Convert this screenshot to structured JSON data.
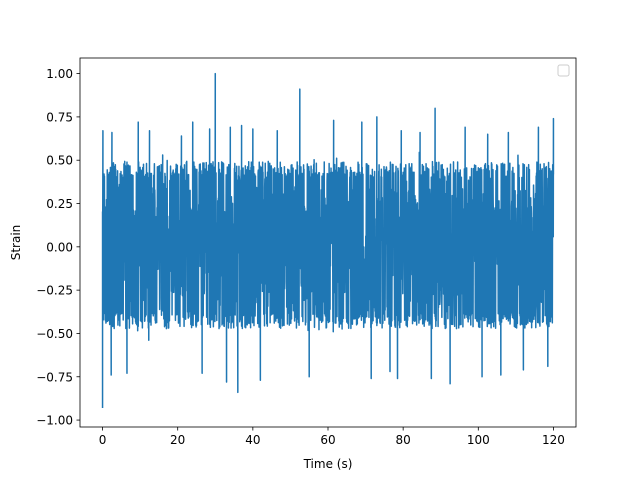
{
  "chart_data": {
    "type": "line",
    "title": "",
    "xlabel": "Time (s)",
    "ylabel": "Strain",
    "xlim": [
      -6,
      126
    ],
    "ylim": [
      -1.04,
      1.09
    ],
    "xticks": [
      0,
      20,
      40,
      60,
      80,
      100,
      120
    ],
    "xtick_labels": [
      "0",
      "20",
      "40",
      "60",
      "80",
      "100",
      "120"
    ],
    "yticks": [
      -1.0,
      -0.75,
      -0.5,
      -0.25,
      0.0,
      0.25,
      0.5,
      0.75,
      1.0
    ],
    "ytick_labels": [
      "−1.00",
      "−0.75",
      "−0.50",
      "−0.25",
      "0.00",
      "0.25",
      "0.50",
      "0.75",
      "1.00"
    ],
    "grid": false,
    "legend": {
      "placement": "top-right",
      "entries": []
    },
    "series": [
      {
        "color": "#1f77b4",
        "x_range": [
          0,
          120
        ],
        "typical_envelope": [
          -0.45,
          0.47
        ],
        "peaks": [
          {
            "x": 0.0,
            "y": -0.93
          },
          {
            "x": 0.1,
            "y": 0.67
          },
          {
            "x": 2.3,
            "y": -0.74
          },
          {
            "x": 2.5,
            "y": 0.66
          },
          {
            "x": 6.5,
            "y": -0.73
          },
          {
            "x": 9.5,
            "y": 0.72
          },
          {
            "x": 12.5,
            "y": 0.67
          },
          {
            "x": 16.0,
            "y": 0.53
          },
          {
            "x": 21.0,
            "y": 0.64
          },
          {
            "x": 24.0,
            "y": 0.72
          },
          {
            "x": 26.5,
            "y": -0.73
          },
          {
            "x": 28.5,
            "y": 0.68
          },
          {
            "x": 30.0,
            "y": 1.0
          },
          {
            "x": 33.0,
            "y": -0.78
          },
          {
            "x": 34.0,
            "y": 0.69
          },
          {
            "x": 36.0,
            "y": -0.84
          },
          {
            "x": 37.0,
            "y": 0.7
          },
          {
            "x": 40.0,
            "y": 0.68
          },
          {
            "x": 42.0,
            "y": -0.77
          },
          {
            "x": 46.5,
            "y": 0.67
          },
          {
            "x": 52.5,
            "y": 0.91
          },
          {
            "x": 55.0,
            "y": -0.75
          },
          {
            "x": 61.5,
            "y": 0.73
          },
          {
            "x": 69.0,
            "y": 0.72
          },
          {
            "x": 71.5,
            "y": -0.76
          },
          {
            "x": 73.0,
            "y": 0.75
          },
          {
            "x": 76.5,
            "y": -0.72
          },
          {
            "x": 78.5,
            "y": -0.76
          },
          {
            "x": 79.5,
            "y": 0.67
          },
          {
            "x": 84.5,
            "y": 0.66
          },
          {
            "x": 87.5,
            "y": -0.76
          },
          {
            "x": 88.5,
            "y": 0.8
          },
          {
            "x": 92.5,
            "y": -0.79
          },
          {
            "x": 96.5,
            "y": 0.69
          },
          {
            "x": 101.0,
            "y": -0.75
          },
          {
            "x": 102.5,
            "y": 0.65
          },
          {
            "x": 106.0,
            "y": -0.74
          },
          {
            "x": 108.0,
            "y": 0.66
          },
          {
            "x": 112.0,
            "y": -0.71
          },
          {
            "x": 116.0,
            "y": 0.69
          },
          {
            "x": 118.5,
            "y": -0.69
          },
          {
            "x": 120.0,
            "y": 0.74
          }
        ]
      }
    ]
  }
}
